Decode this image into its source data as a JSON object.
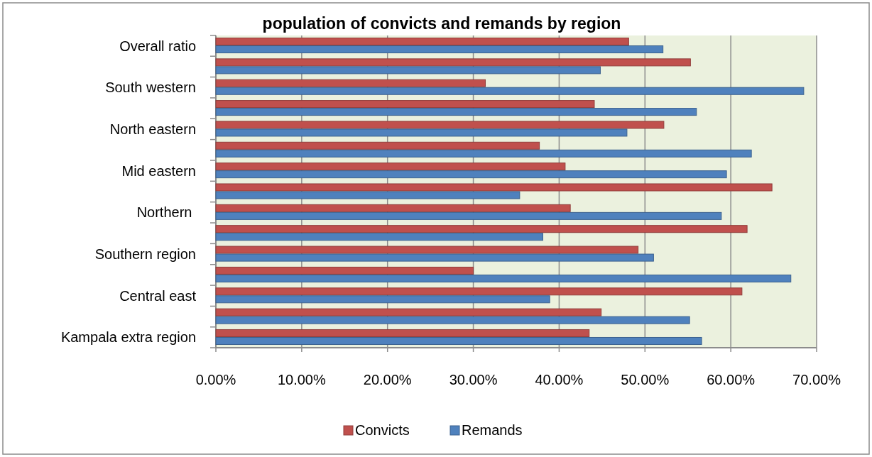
{
  "chart_data": {
    "type": "bar",
    "orientation": "horizontal",
    "title": "population of convicts and remands by region",
    "categories": [
      "Overall ratio",
      null,
      "South western",
      null,
      "North eastern",
      null,
      "Mid eastern",
      null,
      "Northern ",
      null,
      "Southern region",
      null,
      "Central east",
      null,
      "Kampala extra region"
    ],
    "series": [
      {
        "name": "Convicts",
        "color": "#c0504d",
        "values": [
          48.1,
          55.3,
          31.4,
          44.1,
          52.2,
          37.7,
          40.7,
          64.8,
          41.3,
          61.9,
          49.2,
          30.0,
          61.3,
          44.9,
          43.5
        ]
      },
      {
        "name": "Remands",
        "color": "#4f81bd",
        "values": [
          52.1,
          44.8,
          68.5,
          56.0,
          47.9,
          62.4,
          59.5,
          35.4,
          58.9,
          38.1,
          51.0,
          67.0,
          38.9,
          55.2,
          56.6
        ]
      }
    ],
    "xlim": [
      0,
      70
    ],
    "xticks": [
      {
        "value": 0,
        "label": "0.00%"
      },
      {
        "value": 10,
        "label": "10.00%"
      },
      {
        "value": 20,
        "label": "20.00%"
      },
      {
        "value": 30,
        "label": "30.00%"
      },
      {
        "value": 40,
        "label": "40.00%"
      },
      {
        "value": 50,
        "label": "50.00%"
      },
      {
        "value": 60,
        "label": "60.00%"
      },
      {
        "value": 70,
        "label": "70.00%"
      }
    ],
    "grid": "x",
    "legend": "bottom"
  }
}
